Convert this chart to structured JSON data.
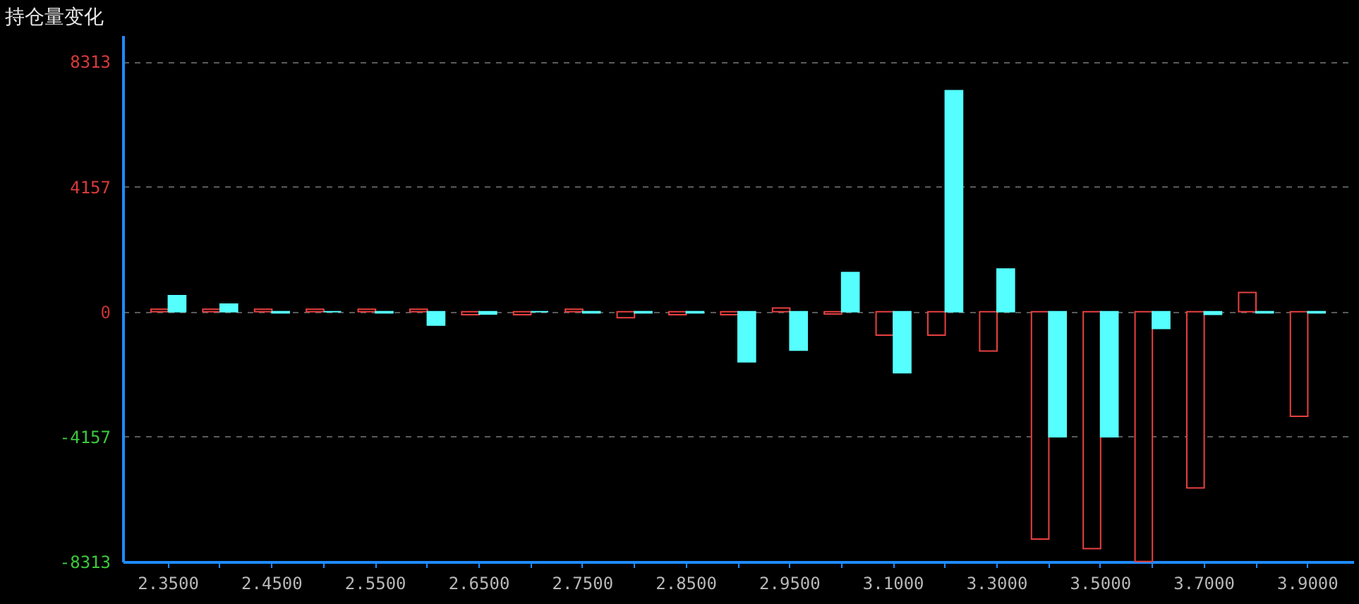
{
  "chart_data": {
    "type": "bar",
    "ylabel": "持仓量变化",
    "categories": [
      "2.3500",
      null,
      "2.4500",
      null,
      "2.5500",
      null,
      "2.6500",
      null,
      "2.7500",
      null,
      "2.8500",
      null,
      "2.9500",
      null,
      "3.1000",
      null,
      "3.3000",
      null,
      "3.5000",
      null,
      "3.7000",
      null,
      "3.9000"
    ],
    "series": [
      {
        "color": "#e84040",
        "values": [
          80,
          80,
          80,
          80,
          80,
          80,
          -100,
          -100,
          80,
          -200,
          -100,
          -100,
          120,
          -80,
          -780,
          -780,
          -1310,
          -7560,
          -7880,
          -8310,
          -5860,
          640,
          -3480
        ]
      },
      {
        "color": "#55ffff",
        "values": [
          530,
          250,
          -40,
          0,
          -40,
          -450,
          -80,
          0,
          -40,
          -40,
          -40,
          -1670,
          -1280,
          1300,
          -2030,
          7350,
          1420,
          -4160,
          -4160,
          -560,
          -90,
          -40,
          -40
        ]
      }
    ],
    "ylim": [
      -8313,
      9190
    ],
    "yticks": [
      -8313,
      -4157,
      0,
      4157,
      8313
    ],
    "grid": "y"
  }
}
